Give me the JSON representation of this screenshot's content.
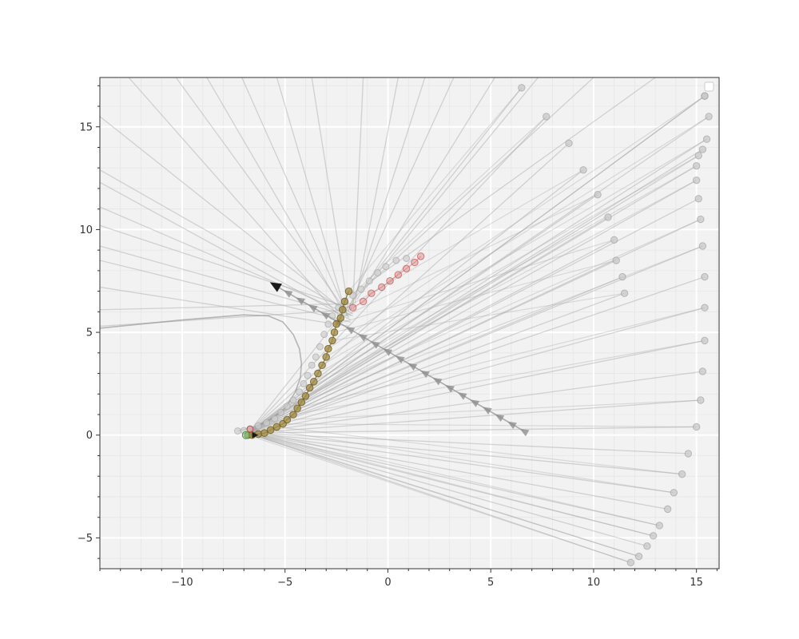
{
  "chart_data": {
    "type": "line",
    "title": "",
    "xlabel": "",
    "ylabel": "",
    "xlim": [
      -14,
      16.1
    ],
    "ylim": [
      -6.5,
      17.4
    ],
    "x_ticks": [
      -10,
      -5,
      0,
      5,
      10,
      15
    ],
    "y_ticks": [
      -5,
      0,
      5,
      10,
      15
    ],
    "x_tick_labels": [
      "−10",
      "−5",
      "0",
      "5",
      "10",
      "15"
    ],
    "y_tick_labels": [
      "−5",
      "0",
      "5",
      "10",
      "15"
    ],
    "grid": true,
    "minor_grid": true,
    "background": "#f2f2f2",
    "legend": "top-right",
    "colors": {
      "rays": "#a6a6a6",
      "estimate": "#8b7d3a",
      "estimate_face": "#a08a40",
      "truth": "#d98c8c",
      "start": "#80c080",
      "arrow": "#1a1a1a",
      "points": "#c8c8c8"
    },
    "main_path": {
      "x": [
        -6.8,
        -6.6,
        -6.3,
        -6.0,
        -5.7,
        -5.4,
        -5.1,
        -4.9,
        -4.6,
        -4.4,
        -4.2,
        -4.0,
        -3.8,
        -3.6,
        -3.4,
        -3.2,
        -3.0,
        -2.9,
        -2.7,
        -2.6,
        -2.5,
        -2.3,
        -2.2,
        -2.1,
        -1.9
      ],
      "y": [
        0.0,
        0.0,
        0.05,
        0.1,
        0.25,
        0.4,
        0.55,
        0.75,
        1.0,
        1.3,
        1.6,
        1.9,
        2.3,
        2.6,
        3.0,
        3.4,
        3.8,
        4.2,
        4.6,
        5.0,
        5.4,
        5.7,
        6.1,
        6.5,
        7.0
      ]
    },
    "truth_path": {
      "x": [
        -1.7,
        -1.2,
        -0.8,
        -0.3,
        0.1,
        0.5,
        0.9,
        1.3,
        1.6
      ],
      "y": [
        6.2,
        6.5,
        6.9,
        7.2,
        7.5,
        7.8,
        8.1,
        8.4,
        8.7
      ]
    },
    "ray_origin": [
      -6.8,
      0.1
    ],
    "ray_targets": {
      "x": [
        11.8,
        12.2,
        12.6,
        12.9,
        13.2,
        13.6,
        13.9,
        14.3,
        14.6,
        15.0,
        15.2,
        15.3,
        15.4,
        15.4,
        15.4,
        15.3,
        15.2,
        15.1,
        15.0,
        15.0,
        15.1,
        15.3,
        15.5,
        15.6,
        15.4,
        15.4,
        11.5,
        11.4,
        11.1,
        11.0,
        10.7,
        10.2,
        9.5,
        8.8,
        7.7,
        6.5
      ],
      "y": [
        -6.2,
        -5.9,
        -5.4,
        -4.9,
        -4.4,
        -3.6,
        -2.8,
        -1.9,
        -0.9,
        0.4,
        1.7,
        3.1,
        4.6,
        6.2,
        7.7,
        9.2,
        10.5,
        11.5,
        12.4,
        13.1,
        13.6,
        13.9,
        14.4,
        15.5,
        16.5,
        16.5,
        6.9,
        7.7,
        8.5,
        9.5,
        10.6,
        11.7,
        12.9,
        14.2,
        15.5,
        16.9
      ]
    },
    "far_lines": [
      {
        "from": [
          -14,
          15.5
        ],
        "to": [
          -1.8,
          5.8
        ]
      },
      {
        "from": [
          -14,
          12.9
        ],
        "to": [
          -1.7,
          5.9
        ]
      },
      {
        "from": [
          -14,
          12.3
        ],
        "to": [
          -1.8,
          5.6
        ]
      },
      {
        "from": [
          -14,
          11.1
        ],
        "to": [
          -1.7,
          5.8
        ]
      },
      {
        "from": [
          -14,
          10.2
        ],
        "to": [
          -1.6,
          6.1
        ]
      },
      {
        "from": [
          -14,
          9.2
        ],
        "to": [
          -1.9,
          5.8
        ]
      },
      {
        "from": [
          -14,
          8.5
        ],
        "to": [
          -1.8,
          5.5
        ]
      },
      {
        "from": [
          -14,
          7.2
        ],
        "to": [
          -1.9,
          5.3
        ]
      },
      {
        "from": [
          -14,
          6.1
        ],
        "to": [
          -1.7,
          6.4
        ]
      },
      {
        "from": [
          -14,
          5.3
        ],
        "to": [
          -1.8,
          6.1
        ]
      },
      {
        "from": [
          -12.6,
          17.4
        ],
        "to": [
          -2.2,
          5.6
        ]
      },
      {
        "from": [
          -10.3,
          17.4
        ],
        "to": [
          -2.0,
          6.0
        ]
      },
      {
        "from": [
          -8.8,
          17.4
        ],
        "to": [
          -2.1,
          5.9
        ]
      },
      {
        "from": [
          -7.1,
          17.4
        ],
        "to": [
          -1.9,
          5.7
        ]
      },
      {
        "from": [
          -5.4,
          17.4
        ],
        "to": [
          -2.0,
          5.8
        ]
      },
      {
        "from": [
          -3.7,
          17.4
        ],
        "to": [
          -1.9,
          6.0
        ]
      },
      {
        "from": [
          -1.2,
          17.4
        ],
        "to": [
          -1.7,
          6.3
        ]
      },
      {
        "from": [
          0.5,
          17.4
        ],
        "to": [
          -1.6,
          6.4
        ]
      },
      {
        "from": [
          1.8,
          17.4
        ],
        "to": [
          -1.8,
          6.1
        ]
      },
      {
        "from": [
          3.2,
          17.4
        ],
        "to": [
          -1.9,
          6.2
        ]
      },
      {
        "from": [
          5.2,
          17.4
        ],
        "to": [
          -1.5,
          6.6
        ]
      },
      {
        "from": [
          7.3,
          17.4
        ],
        "to": [
          -1.3,
          6.9
        ]
      },
      {
        "from": [
          10.0,
          17.4
        ],
        "to": [
          -1.1,
          7.2
        ]
      },
      {
        "from": [
          13.0,
          17.4
        ],
        "to": [
          -0.8,
          7.5
        ]
      }
    ],
    "cusp_curve": {
      "x": [
        -14,
        -10,
        -7,
        -5.8,
        -5.1,
        -4.6,
        -4.3,
        -4.2,
        -4.25,
        -4.5,
        -5.0,
        -5.8,
        -6.6,
        -7.3
      ],
      "y": [
        5.2,
        5.6,
        5.85,
        5.8,
        5.5,
        4.9,
        4.2,
        3.5,
        2.8,
        2.1,
        1.3,
        0.7,
        0.35,
        0.2
      ]
    },
    "arrow_line": {
      "from": [
        6.6,
        0.2
      ],
      "to": [
        -5.5,
        7.3
      ],
      "chevrons": 20
    }
  }
}
